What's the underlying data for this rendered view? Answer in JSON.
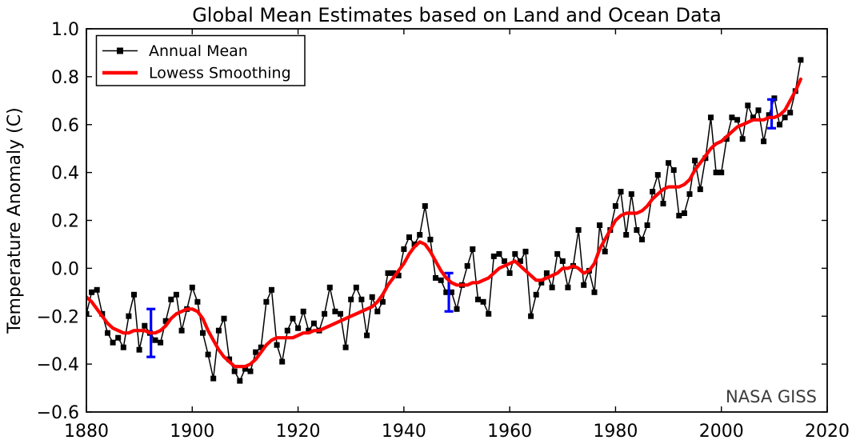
{
  "title": "Global Mean Estimates based on Land and Ocean Data",
  "watermark": "NASA GISS",
  "legend": {
    "annual_label": "Annual Mean",
    "lowess_label": "Lowess Smoothing"
  },
  "axes": {
    "ylabel": "Temperature Anomaly (C)",
    "x_ticks": [
      {
        "v": 1880,
        "label": "1880"
      },
      {
        "v": 1900,
        "label": "1900"
      },
      {
        "v": 1920,
        "label": "1920"
      },
      {
        "v": 1940,
        "label": "1940"
      },
      {
        "v": 1960,
        "label": "1960"
      },
      {
        "v": 1980,
        "label": "1980"
      },
      {
        "v": 2000,
        "label": "2000"
      },
      {
        "v": 2020,
        "label": "2020"
      }
    ],
    "y_ticks": [
      {
        "v": 1.0,
        "label": "1.0"
      },
      {
        "v": 0.8,
        "label": "0.8"
      },
      {
        "v": 0.6,
        "label": "0.6"
      },
      {
        "v": 0.4,
        "label": "0.4"
      },
      {
        "v": 0.2,
        "label": "0.2"
      },
      {
        "v": 0.0,
        "label": "0.0"
      },
      {
        "v": -0.2,
        "label": "−0.2"
      },
      {
        "v": -0.4,
        "label": "−0.4"
      },
      {
        "v": -0.6,
        "label": "−0.6"
      }
    ]
  },
  "colors": {
    "annual": "#000000",
    "lowess": "#ff0000",
    "error_bar": "#0000ff",
    "watermark": "#3b3b3b",
    "spine": "#000000"
  },
  "chart_data": {
    "type": "line",
    "title": "Global Mean Estimates based on Land and Ocean Data",
    "xlabel": "",
    "ylabel": "Temperature Anomaly (C)",
    "xlim": [
      1880,
      2020
    ],
    "ylim": [
      -0.6,
      1.0
    ],
    "grid": false,
    "legend_position": "upper left",
    "x_start_year": 1880,
    "x_step": 1,
    "series": [
      {
        "name": "Annual Mean",
        "style": "line+square-markers",
        "color": "#000000",
        "values": [
          -0.19,
          -0.1,
          -0.09,
          -0.19,
          -0.27,
          -0.31,
          -0.29,
          -0.33,
          -0.2,
          -0.11,
          -0.34,
          -0.24,
          -0.27,
          -0.3,
          -0.31,
          -0.22,
          -0.13,
          -0.11,
          -0.26,
          -0.17,
          -0.08,
          -0.14,
          -0.27,
          -0.36,
          -0.46,
          -0.26,
          -0.21,
          -0.38,
          -0.43,
          -0.47,
          -0.42,
          -0.43,
          -0.35,
          -0.33,
          -0.14,
          -0.09,
          -0.32,
          -0.39,
          -0.26,
          -0.21,
          -0.25,
          -0.18,
          -0.26,
          -0.23,
          -0.26,
          -0.19,
          -0.08,
          -0.18,
          -0.19,
          -0.33,
          -0.13,
          -0.08,
          -0.13,
          -0.28,
          -0.12,
          -0.18,
          -0.14,
          -0.02,
          -0.02,
          -0.03,
          0.08,
          0.13,
          0.1,
          0.14,
          0.26,
          0.12,
          -0.04,
          -0.05,
          -0.1,
          -0.1,
          -0.17,
          -0.07,
          0.01,
          0.08,
          -0.13,
          -0.14,
          -0.19,
          0.05,
          0.06,
          0.03,
          -0.02,
          0.06,
          0.03,
          0.07,
          -0.2,
          -0.11,
          -0.06,
          -0.02,
          -0.08,
          0.06,
          0.03,
          -0.08,
          0.01,
          0.16,
          -0.07,
          -0.01,
          -0.1,
          0.18,
          0.07,
          0.16,
          0.26,
          0.32,
          0.14,
          0.31,
          0.16,
          0.12,
          0.18,
          0.32,
          0.39,
          0.27,
          0.44,
          0.41,
          0.22,
          0.23,
          0.31,
          0.45,
          0.33,
          0.46,
          0.63,
          0.4,
          0.4,
          0.54,
          0.63,
          0.62,
          0.54,
          0.68,
          0.63,
          0.66,
          0.53,
          0.64,
          0.71,
          0.6,
          0.63,
          0.65,
          0.74,
          0.87
        ]
      },
      {
        "name": "Lowess Smoothing",
        "style": "thick-line",
        "color": "#ff0000",
        "values": [
          -0.12,
          -0.14,
          -0.17,
          -0.2,
          -0.23,
          -0.25,
          -0.26,
          -0.27,
          -0.27,
          -0.26,
          -0.26,
          -0.26,
          -0.27,
          -0.27,
          -0.26,
          -0.24,
          -0.21,
          -0.19,
          -0.18,
          -0.17,
          -0.17,
          -0.18,
          -0.21,
          -0.26,
          -0.3,
          -0.34,
          -0.37,
          -0.39,
          -0.41,
          -0.41,
          -0.41,
          -0.4,
          -0.38,
          -0.35,
          -0.32,
          -0.3,
          -0.29,
          -0.29,
          -0.29,
          -0.29,
          -0.28,
          -0.27,
          -0.27,
          -0.26,
          -0.26,
          -0.25,
          -0.24,
          -0.23,
          -0.22,
          -0.21,
          -0.2,
          -0.19,
          -0.18,
          -0.17,
          -0.16,
          -0.14,
          -0.11,
          -0.07,
          -0.04,
          -0.01,
          0.02,
          0.06,
          0.09,
          0.11,
          0.1,
          0.07,
          0.03,
          -0.01,
          -0.04,
          -0.06,
          -0.07,
          -0.07,
          -0.07,
          -0.06,
          -0.06,
          -0.05,
          -0.04,
          -0.02,
          0.0,
          0.01,
          0.02,
          0.03,
          0.01,
          -0.01,
          -0.03,
          -0.05,
          -0.05,
          -0.04,
          -0.03,
          -0.02,
          0.0,
          0.0,
          0.01,
          0.0,
          -0.02,
          -0.01,
          0.02,
          0.08,
          0.12,
          0.16,
          0.2,
          0.22,
          0.23,
          0.23,
          0.23,
          0.24,
          0.26,
          0.29,
          0.31,
          0.33,
          0.34,
          0.34,
          0.34,
          0.35,
          0.37,
          0.41,
          0.44,
          0.47,
          0.5,
          0.52,
          0.53,
          0.55,
          0.57,
          0.59,
          0.6,
          0.61,
          0.62,
          0.62,
          0.62,
          0.63,
          0.63,
          0.64,
          0.66,
          0.7,
          0.74,
          0.79
        ]
      }
    ],
    "error_bars": [
      {
        "year": 1892.2,
        "center": -0.27,
        "half_range": 0.1
      },
      {
        "year": 1948.5,
        "center": -0.1,
        "half_range": 0.08
      },
      {
        "year": 2009.5,
        "center": 0.645,
        "half_range": 0.06
      }
    ]
  }
}
